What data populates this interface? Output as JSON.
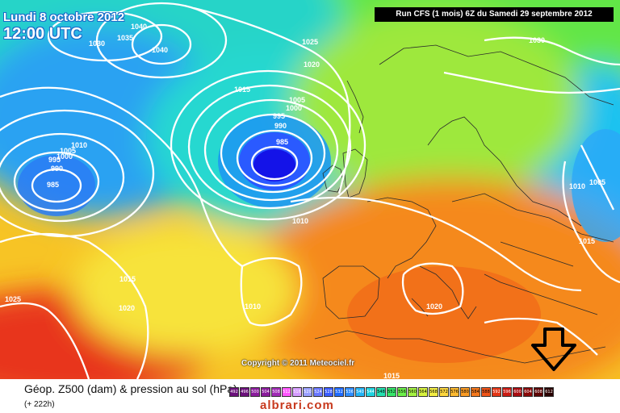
{
  "header": {
    "date": "Lundi 8 octobre 2012",
    "time": "12:00 UTC",
    "run": "Run CFS (1 mois) 6Z du Samedi 29 septembre 2012"
  },
  "isobar_labels": [
    "1040",
    "1035",
    "1030",
    "1040",
    "1025",
    "1020",
    "1030",
    "1015",
    "1005",
    "1000",
    "995",
    "990",
    "985",
    "1010",
    "1005",
    "1000",
    "995",
    "990",
    "985",
    "1010",
    "1005",
    "1010",
    "1015",
    "1015",
    "1010",
    "1025",
    "1020",
    "1020",
    "1015"
  ],
  "map": {
    "copyright": "Copyright © 2011 Meteociel.fr",
    "arrow_icon": "down-arrow-icon"
  },
  "legend": {
    "title": "Géop. Z500 (dam) & pression au sol (hPa)",
    "hours": "(+ 222h)",
    "scale": [
      "492",
      "496",
      "500",
      "504",
      "508",
      "512",
      "516",
      "520",
      "524",
      "528",
      "532",
      "536",
      "540",
      "544",
      "548",
      "552",
      "556",
      "560",
      "564",
      "568",
      "572",
      "576",
      "580",
      "584",
      "588",
      "592",
      "596",
      "600",
      "604",
      "608",
      "612"
    ],
    "scale_colors": [
      "#6a0f7a",
      "#6a0f7a",
      "#8a1b9c",
      "#8a1b9c",
      "#a02bb5",
      "#ff55ff",
      "#d59cff",
      "#9aa0ff",
      "#6a78ff",
      "#3a5cff",
      "#1e6bff",
      "#2d8cff",
      "#22b4f5",
      "#1fd3e0",
      "#24e0b0",
      "#36e66a",
      "#6cf04a",
      "#a4f242",
      "#d7f23e",
      "#f2ec43",
      "#fcd63e",
      "#fcb92f",
      "#f99b24",
      "#f5781c",
      "#f05418",
      "#e23515",
      "#c91a12",
      "#a80c10",
      "#880808",
      "#5c0404",
      "#2a0000"
    ],
    "watermark": "albrari.com"
  }
}
